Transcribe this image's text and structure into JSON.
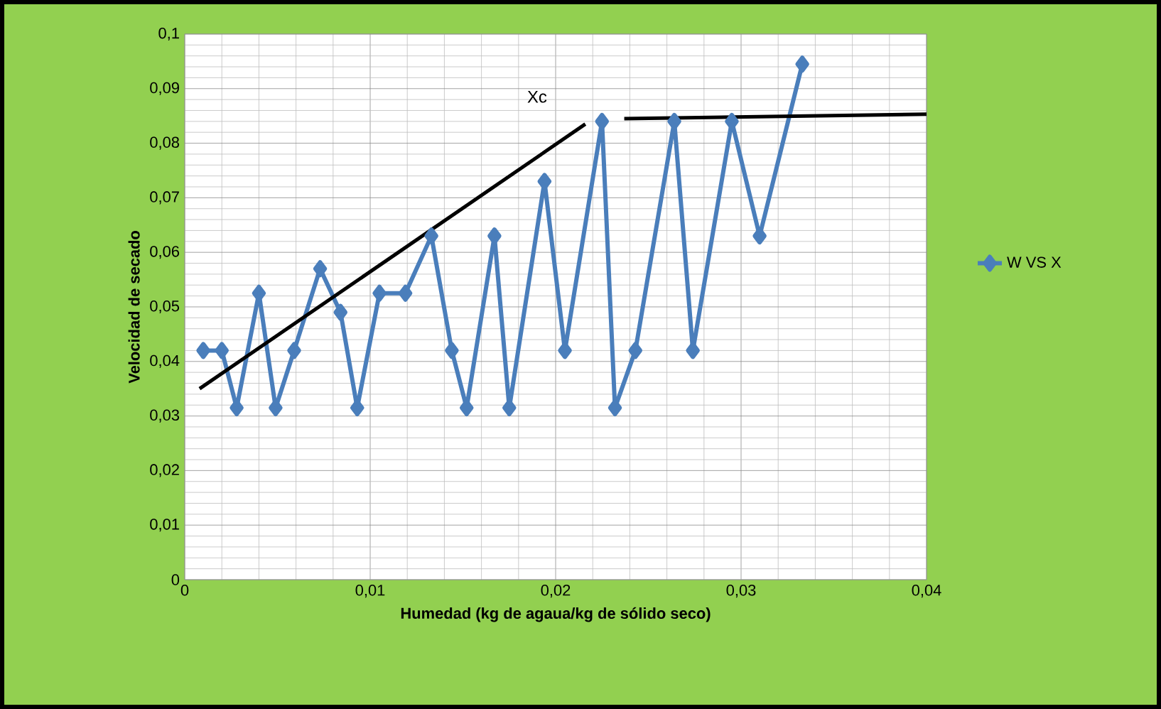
{
  "chart_data": {
    "type": "line",
    "xlabel": "Humedad (kg de agaua/kg de sólido seco)",
    "ylabel": "Velocidad de secado",
    "xlim": [
      0,
      0.04
    ],
    "ylim": [
      0,
      0.1
    ],
    "xticks": [
      {
        "value": 0,
        "label": "0"
      },
      {
        "value": 0.01,
        "label": "0,01"
      },
      {
        "value": 0.02,
        "label": "0,02"
      },
      {
        "value": 0.03,
        "label": "0,03"
      },
      {
        "value": 0.04,
        "label": "0,04"
      }
    ],
    "yticks": [
      {
        "value": 0,
        "label": "0"
      },
      {
        "value": 0.01,
        "label": "0,01"
      },
      {
        "value": 0.02,
        "label": "0,02"
      },
      {
        "value": 0.03,
        "label": "0,03"
      },
      {
        "value": 0.04,
        "label": "0,04"
      },
      {
        "value": 0.05,
        "label": "0,05"
      },
      {
        "value": 0.06,
        "label": "0,06"
      },
      {
        "value": 0.07,
        "label": "0,07"
      },
      {
        "value": 0.08,
        "label": "0,08"
      },
      {
        "value": 0.09,
        "label": "0,09"
      },
      {
        "value": 0.1,
        "label": "0,1"
      }
    ],
    "grid": true,
    "legend": "right",
    "marker": "diamond",
    "line_style": "solid",
    "annotations": [
      "Xc"
    ],
    "series": [
      {
        "name": "W VS X",
        "color": "#4a7ebb",
        "x": [
          0.001,
          0.002,
          0.0028,
          0.004,
          0.0049,
          0.0059,
          0.0073,
          0.0084,
          0.0093,
          0.0105,
          0.0119,
          0.0133,
          0.0144,
          0.0152,
          0.0167,
          0.0175,
          0.0194,
          0.0205,
          0.0225,
          0.0232,
          0.0243,
          0.0264,
          0.0274,
          0.0295,
          0.031,
          0.0333
        ],
        "values": [
          0.042,
          0.042,
          0.0315,
          0.0525,
          0.0315,
          0.042,
          0.057,
          0.049,
          0.0315,
          0.0525,
          0.0525,
          0.063,
          0.042,
          0.0315,
          0.063,
          0.0315,
          0.073,
          0.042,
          0.084,
          0.0315,
          0.042,
          0.084,
          0.042,
          0.084,
          0.063,
          0.0945
        ]
      },
      {
        "color": "#000000",
        "marker": "none",
        "x": [
          0.0008,
          0.0216
        ],
        "values": [
          0.035,
          0.0835
        ]
      },
      {
        "color": "#000000",
        "marker": "none",
        "x": [
          0.0237,
          0.04
        ],
        "values": [
          0.0845,
          0.0853
        ]
      }
    ]
  }
}
